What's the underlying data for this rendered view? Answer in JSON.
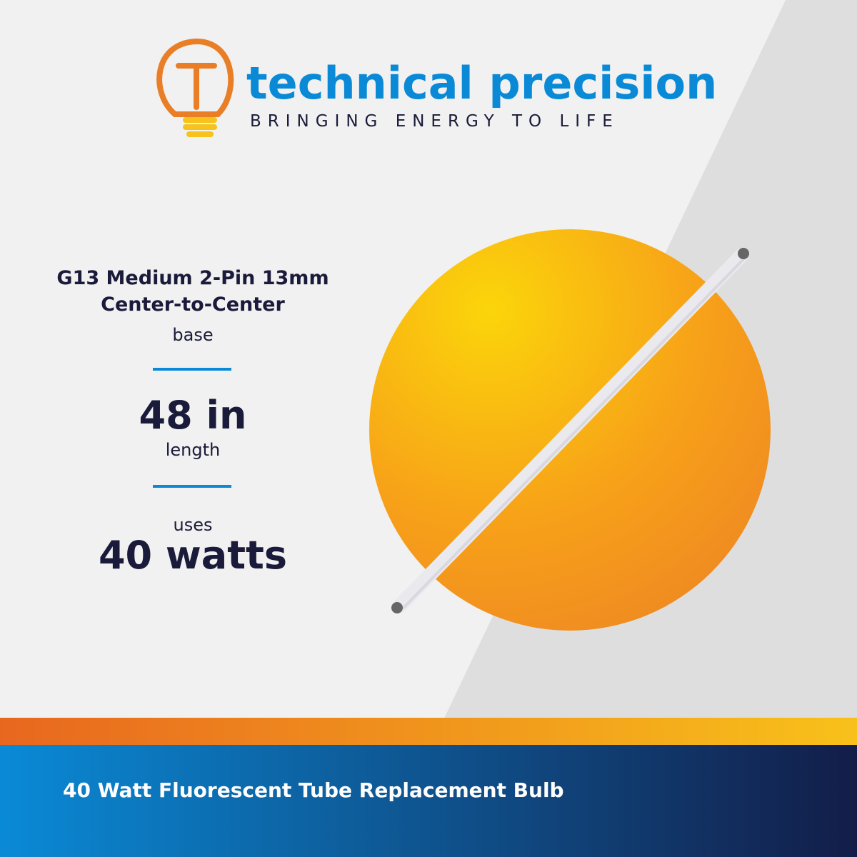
{
  "header": {
    "brand": "technical precision",
    "tagline": "BRINGING ENERGY TO LIFE"
  },
  "specs": {
    "base": {
      "title_line1": "G13 Medium 2-Pin 13mm",
      "title_line2": "Center-to-Center",
      "caption": "base"
    },
    "length": {
      "value": "48 in",
      "caption": "length"
    },
    "power": {
      "caption": "uses",
      "value": "40 watts"
    }
  },
  "footer": {
    "text": "40 Watt Fluorescent Tube Replacement Bulb"
  }
}
